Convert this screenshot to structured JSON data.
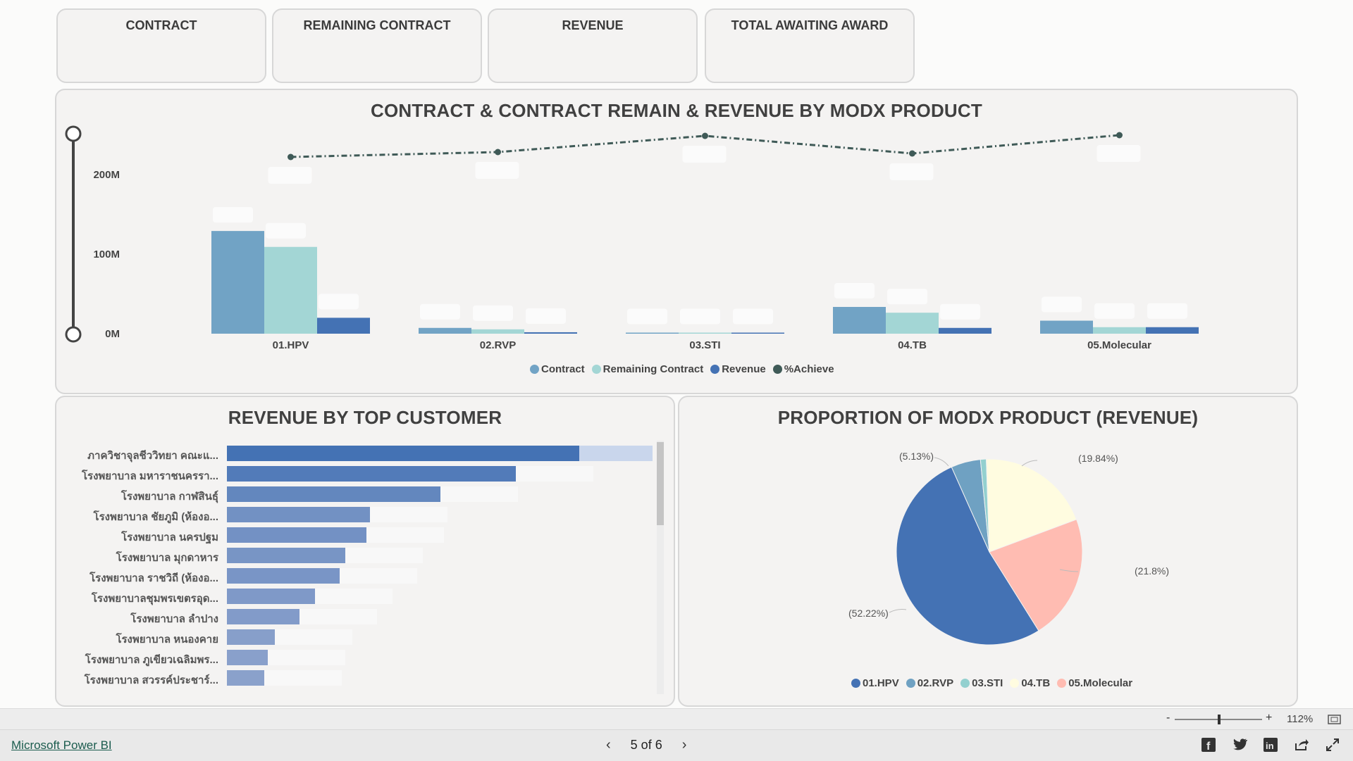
{
  "kpis": [
    {
      "label": "CONTRACT"
    },
    {
      "label": "REMAINING CONTRACT"
    },
    {
      "label": "REVENUE"
    },
    {
      "label": "TOTAL AWAITING AWARD"
    }
  ],
  "combo": {
    "title": "CONTRACT & CONTRACT REMAIN & REVENUE BY MODX PRODUCT",
    "y_ticks": [
      "200M",
      "100M",
      "0M"
    ],
    "legend": [
      "Contract",
      "Remaining Contract",
      "Revenue",
      "%Achieve"
    ]
  },
  "customers": {
    "title": "REVENUE BY TOP CUSTOMER",
    "names": [
      "ภาควิชาจุลชีววิทยา คณะแ...",
      "โรงพยาบาล มหาราชนครรา...",
      "โรงพยาบาล กาฬสินธุ์",
      "โรงพยาบาล ชัยภูมิ (ห้องอ...",
      "โรงพยาบาล นครปฐม",
      "โรงพยาบาล มุกดาหาร",
      "โรงพยาบาล ราชวิถี (ห้องอ...",
      "โรงพยาบาลชุมพรเขตรอุด...",
      "โรงพยาบาล ลำปาง",
      "โรงพยาบาล หนองคาย",
      "โรงพยาบาล ภูเขียวเฉลิมพร...",
      "โรงพยาบาล สวรรค์ประชาร์..."
    ]
  },
  "pie": {
    "title": "PROPORTION OF MODX PRODUCT (REVENUE)",
    "labels": [
      "(52.22%)",
      "(5.13%)",
      "(19.84%)",
      "(21.8%)"
    ],
    "legend": [
      "01.HPV",
      "02.RVP",
      "03.STI",
      "04.TB",
      "05.Molecular"
    ]
  },
  "colors": {
    "contract": "#71a3c5",
    "remaining": "#a3d6d5",
    "revenue": "#4472b4",
    "achieve": "#3f5a57",
    "hpv": "#4472b4",
    "rvp": "#6fa1c2",
    "sti": "#93d0cf",
    "tb": "#fffce0",
    "molecular": "#ffbcb2"
  },
  "chart_data": [
    {
      "type": "bar",
      "title": "CONTRACT & CONTRACT REMAIN & REVENUE BY MODX PRODUCT",
      "categories": [
        "01.HPV",
        "02.RVP",
        "03.STI",
        "04.TB",
        "05.Molecular"
      ],
      "series": [
        {
          "name": "Contract",
          "values": [
            142,
            8,
            1,
            37,
            18
          ]
        },
        {
          "name": "Remaining Contract",
          "values": [
            120,
            6,
            0.5,
            29,
            9
          ]
        },
        {
          "name": "Revenue",
          "values": [
            22,
            2,
            0.5,
            8,
            9
          ]
        }
      ],
      "line_series": {
        "name": "%Achieve",
        "values": [
          0.15,
          0.22,
          0.45,
          0.2,
          0.46
        ]
      },
      "ylim": [
        0,
        220
      ],
      "grid": false,
      "legend": "bottom"
    },
    {
      "type": "bar",
      "orientation": "horizontal",
      "title": "REVENUE BY TOP CUSTOMER",
      "categories": [
        "ภาควิชาจุลชีววิทยา คณะแ...",
        "โรงพยาบาล มหาราชนครรา...",
        "โรงพยาบาล กาฬสินธุ์",
        "โรงพยาบาล ชัยภูมิ (ห้องอ...",
        "โรงพยาบาล นครปฐม",
        "โรงพยาบาล มุกดาหาร",
        "โรงพยาบาล ราชวิถี (ห้องอ...",
        "โรงพยาบาลชุมพรเขตรอุด...",
        "โรงพยาบาล ลำปาง",
        "โรงพยาบาล หนองคาย",
        "โรงพยาบาล ภูเขียวเฉลิมพร...",
        "โรงพยาบาล สวรรค์ประชาร์..."
      ],
      "values": [
        100,
        82,
        60.5,
        40.5,
        39.5,
        33.5,
        32,
        25,
        20.5,
        13.5,
        11.5,
        10.5
      ]
    },
    {
      "type": "pie",
      "title": "PROPORTION OF MODX PRODUCT (REVENUE)",
      "categories": [
        "01.HPV",
        "02.RVP",
        "03.STI",
        "04.TB",
        "05.Molecular"
      ],
      "values": [
        52.22,
        5.13,
        1.01,
        19.84,
        21.8
      ],
      "legend": "bottom"
    }
  ],
  "zoom": {
    "minus": "-",
    "plus": "+",
    "level": "112%"
  },
  "footer": {
    "brand": "Microsoft Power BI",
    "page_indicator": "5 of 6"
  }
}
